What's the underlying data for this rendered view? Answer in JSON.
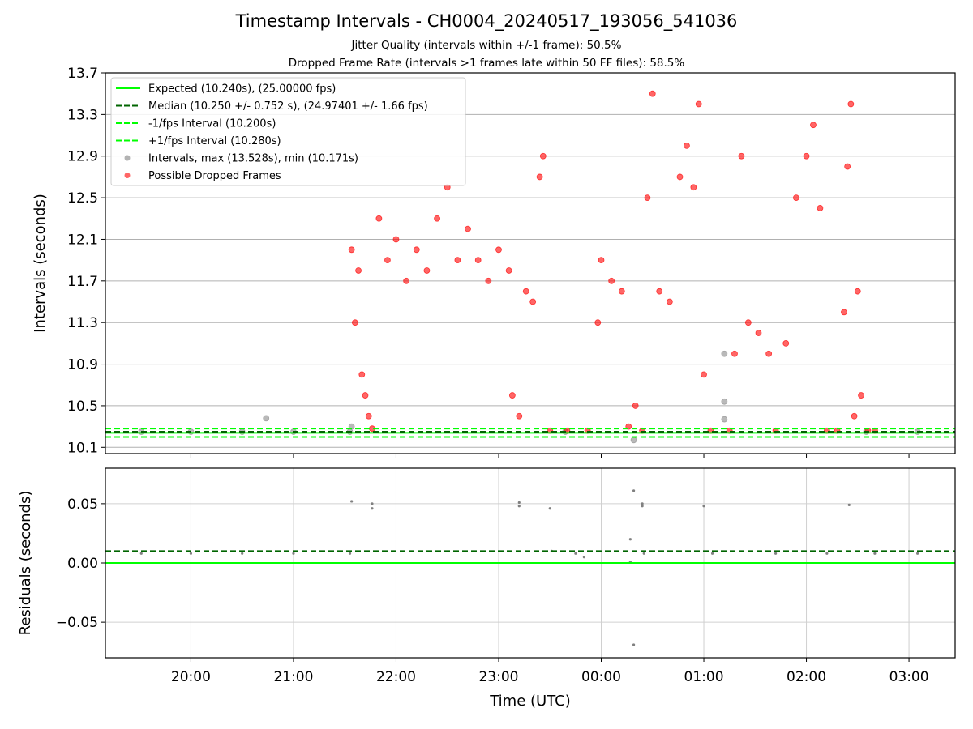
{
  "chart_data": [
    {
      "type": "scatter",
      "title": "Timestamp Intervals - CH0004_20240517_193056_541036",
      "subtitle_1": "Jitter Quality (intervals within +/-1 frame): 50.5%",
      "subtitle_2": "Dropped Frame Rate (intervals >1 frames late within 50 FF files): 58.5%",
      "ylabel": "Intervals (seconds)",
      "ylim": [
        10.04,
        13.7
      ],
      "yticks": [
        "10.1",
        "10.5",
        "10.9",
        "11.3",
        "11.7",
        "12.1",
        "12.5",
        "12.9",
        "13.3",
        "13.7"
      ],
      "ytick_values": [
        10.1,
        10.5,
        10.9,
        11.3,
        11.7,
        12.1,
        12.5,
        12.9,
        13.3,
        13.7
      ],
      "xlim": [
        "19:10",
        "03:27"
      ],
      "grid": true,
      "legend_position": "top-left",
      "reference_lines": [
        {
          "name": "Expected (10.240s), (25.00000 fps)",
          "y": 10.24,
          "color": "#00ff00",
          "style": "solid"
        },
        {
          "name": "Median (10.250 +/- 0.752 s), (24.97401 +/- 1.66 fps)",
          "y": 10.25,
          "color": "#006400",
          "style": "dashed"
        },
        {
          "name": "-1/fps Interval (10.200s)",
          "y": 10.2,
          "color": "#00ff00",
          "style": "dashed"
        },
        {
          "name": "+1/fps Interval (10.280s)",
          "y": 10.28,
          "color": "#00ff00",
          "style": "dashed"
        }
      ],
      "series": [
        {
          "name": "Intervals, max (13.528s), min (10.171s)",
          "color": "#808080",
          "points": [
            [
              "19:31",
              10.25
            ],
            [
              "20:00",
              10.25
            ],
            [
              "20:30",
              10.25
            ],
            [
              "20:44",
              10.38
            ],
            [
              "21:00",
              10.25
            ],
            [
              "21:33",
              10.25
            ],
            [
              "21:34",
              10.3
            ],
            [
              "23:39",
              10.25
            ],
            [
              "00:19",
              10.17
            ],
            [
              "01:12",
              10.54
            ],
            [
              "01:12",
              10.37
            ],
            [
              "01:12",
              11.0
            ],
            [
              "02:35",
              10.25
            ],
            [
              "03:05",
              10.25
            ]
          ]
        },
        {
          "name": "Possible Dropped Frames",
          "color": "#ff0000",
          "points": [
            [
              "21:34",
              12.0
            ],
            [
              "21:36",
              11.3
            ],
            [
              "21:38",
              11.8
            ],
            [
              "21:40",
              10.8
            ],
            [
              "21:42",
              10.6
            ],
            [
              "21:44",
              10.4
            ],
            [
              "21:46",
              10.28
            ],
            [
              "21:50",
              12.3
            ],
            [
              "21:55",
              11.9
            ],
            [
              "22:00",
              12.1
            ],
            [
              "22:06",
              11.7
            ],
            [
              "22:12",
              12.0
            ],
            [
              "22:18",
              11.8
            ],
            [
              "22:24",
              12.3
            ],
            [
              "22:30",
              12.6
            ],
            [
              "22:36",
              11.9
            ],
            [
              "22:42",
              12.2
            ],
            [
              "22:48",
              11.9
            ],
            [
              "22:54",
              11.7
            ],
            [
              "23:00",
              12.0
            ],
            [
              "23:06",
              11.8
            ],
            [
              "23:08",
              10.6
            ],
            [
              "23:12",
              10.4
            ],
            [
              "23:16",
              11.6
            ],
            [
              "23:20",
              11.5
            ],
            [
              "23:24",
              12.7
            ],
            [
              "23:26",
              12.9
            ],
            [
              "23:30",
              10.26
            ],
            [
              "23:40",
              10.26
            ],
            [
              "23:52",
              10.26
            ],
            [
              "23:58",
              11.3
            ],
            [
              "00:00",
              11.9
            ],
            [
              "00:06",
              11.7
            ],
            [
              "00:12",
              11.6
            ],
            [
              "00:16",
              10.3
            ],
            [
              "00:20",
              10.5
            ],
            [
              "00:24",
              10.26
            ],
            [
              "00:27",
              12.5
            ],
            [
              "00:30",
              13.5
            ],
            [
              "00:34",
              11.6
            ],
            [
              "00:40",
              11.5
            ],
            [
              "00:46",
              12.7
            ],
            [
              "00:50",
              13.0
            ],
            [
              "00:54",
              12.6
            ],
            [
              "00:57",
              13.4
            ],
            [
              "01:00",
              10.8
            ],
            [
              "01:04",
              10.26
            ],
            [
              "01:15",
              10.26
            ],
            [
              "01:18",
              11.0
            ],
            [
              "01:22",
              12.9
            ],
            [
              "01:26",
              11.3
            ],
            [
              "01:32",
              11.2
            ],
            [
              "01:38",
              11.0
            ],
            [
              "01:42",
              10.26
            ],
            [
              "01:48",
              11.1
            ],
            [
              "01:54",
              12.5
            ],
            [
              "02:00",
              12.9
            ],
            [
              "02:04",
              13.2
            ],
            [
              "02:08",
              12.4
            ],
            [
              "02:12",
              10.26
            ],
            [
              "02:18",
              10.26
            ],
            [
              "02:22",
              11.4
            ],
            [
              "02:24",
              12.8
            ],
            [
              "02:26",
              13.4
            ],
            [
              "02:28",
              10.4
            ],
            [
              "02:30",
              11.6
            ],
            [
              "02:32",
              10.6
            ],
            [
              "02:36",
              10.26
            ],
            [
              "02:40",
              10.26
            ]
          ]
        }
      ]
    },
    {
      "type": "scatter",
      "xlabel": "Time (UTC)",
      "ylabel": "Residuals (seconds)",
      "ylim": [
        -0.08,
        0.08
      ],
      "yticks": [
        "−0.05",
        "0.00",
        "0.05"
      ],
      "ytick_values": [
        -0.05,
        0.0,
        0.05
      ],
      "xticks": [
        "20:00",
        "21:00",
        "22:00",
        "23:00",
        "00:00",
        "01:00",
        "02:00",
        "03:00"
      ],
      "xlim": [
        "19:10",
        "03:27"
      ],
      "grid": true,
      "reference_lines": [
        {
          "y": 0.0,
          "color": "#00ff00",
          "style": "solid"
        },
        {
          "y": 0.01,
          "color": "#006400",
          "style": "dashed"
        }
      ],
      "series": [
        {
          "color": "#808080",
          "points": [
            [
              "19:31",
              0.008
            ],
            [
              "20:00",
              0.008
            ],
            [
              "20:30",
              0.008
            ],
            [
              "21:00",
              0.008
            ],
            [
              "21:33",
              0.008
            ],
            [
              "21:34",
              0.052
            ],
            [
              "21:46",
              0.05
            ],
            [
              "21:46",
              0.046
            ],
            [
              "23:12",
              0.051
            ],
            [
              "23:12",
              0.048
            ],
            [
              "23:30",
              0.046
            ],
            [
              "23:31",
              0.01
            ],
            [
              "23:45",
              0.008
            ],
            [
              "23:50",
              0.005
            ],
            [
              "00:17",
              0.02
            ],
            [
              "00:17",
              0.001
            ],
            [
              "00:19",
              0.061
            ],
            [
              "00:19",
              -0.069
            ],
            [
              "00:24",
              0.05
            ],
            [
              "00:24",
              0.048
            ],
            [
              "00:25",
              0.008
            ],
            [
              "01:00",
              0.048
            ],
            [
              "01:05",
              0.008
            ],
            [
              "01:42",
              0.008
            ],
            [
              "02:12",
              0.008
            ],
            [
              "02:25",
              0.049
            ],
            [
              "02:40",
              0.008
            ],
            [
              "03:05",
              0.008
            ]
          ]
        }
      ]
    }
  ]
}
